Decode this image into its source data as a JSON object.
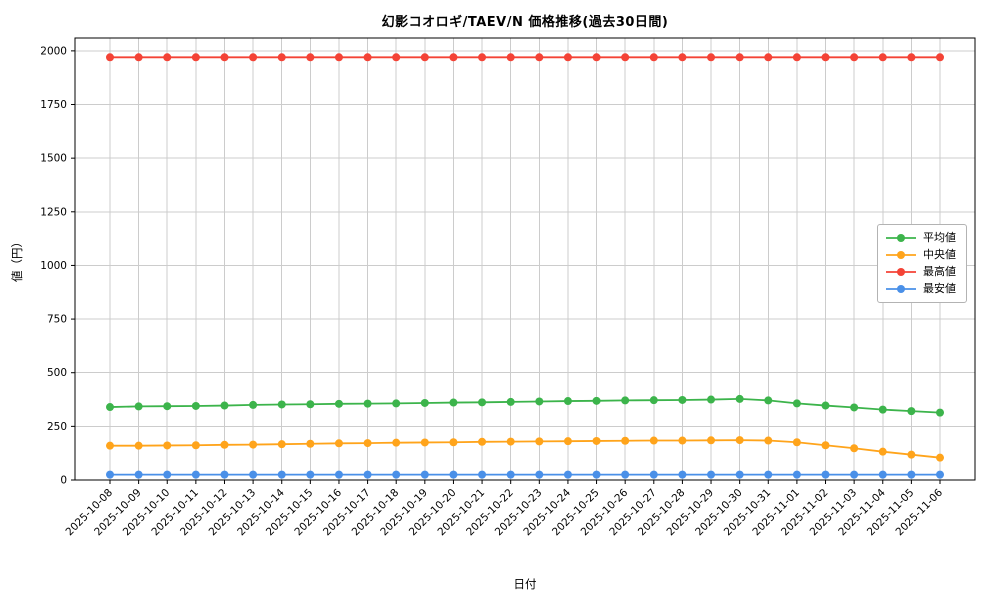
{
  "figure": {
    "background": "#ffffff",
    "grid_color": "#cccccc",
    "axis_color": "#000000"
  },
  "chart_data": {
    "type": "line",
    "title": "幻影コオロギ/TAEV/N 価格推移(過去30日間)",
    "xlabel": "日付",
    "ylabel": "値（円）",
    "grid": true,
    "legend_position": "center right",
    "ylim": [
      0,
      2060
    ],
    "yticks": [
      0,
      250,
      500,
      750,
      1000,
      1250,
      1500,
      1750,
      2000
    ],
    "x": [
      "2025-10-08",
      "2025-10-09",
      "2025-10-10",
      "2025-10-11",
      "2025-10-12",
      "2025-10-13",
      "2025-10-14",
      "2025-10-15",
      "2025-10-16",
      "2025-10-17",
      "2025-10-18",
      "2025-10-19",
      "2025-10-20",
      "2025-10-21",
      "2025-10-22",
      "2025-10-23",
      "2025-10-24",
      "2025-10-25",
      "2025-10-26",
      "2025-10-27",
      "2025-10-28",
      "2025-10-29",
      "2025-10-30",
      "2025-10-31",
      "2025-11-01",
      "2025-11-02",
      "2025-11-03",
      "2025-11-04",
      "2025-11-05",
      "2025-11-06"
    ],
    "series": [
      {
        "name": "平均値",
        "color": "#3cb44b",
        "values": [
          340,
          343,
          344,
          345,
          347,
          350,
          352,
          353,
          355,
          356,
          357,
          359,
          361,
          362,
          364,
          366,
          368,
          369,
          371,
          372,
          373,
          375,
          378,
          371,
          357,
          347,
          338,
          328,
          321,
          314
        ]
      },
      {
        "name": "中央値",
        "color": "#ffa41b",
        "values": [
          160,
          160,
          161,
          162,
          164,
          165,
          167,
          169,
          171,
          172,
          174,
          175,
          176,
          178,
          179,
          180,
          181,
          182,
          183,
          184,
          184,
          185,
          186,
          184,
          176,
          162,
          148,
          132,
          118,
          104
        ]
      },
      {
        "name": "最高値",
        "color": "#f44336",
        "values": [
          1970,
          1970,
          1970,
          1970,
          1970,
          1970,
          1970,
          1970,
          1970,
          1970,
          1970,
          1970,
          1970,
          1970,
          1970,
          1970,
          1970,
          1970,
          1970,
          1970,
          1970,
          1970,
          1970,
          1970,
          1970,
          1970,
          1970,
          1970,
          1970,
          1970
        ]
      },
      {
        "name": "最安値",
        "color": "#4a90e8",
        "values": [
          25,
          25,
          25,
          25,
          25,
          25,
          25,
          25,
          25,
          25,
          25,
          25,
          25,
          25,
          25,
          25,
          25,
          25,
          25,
          25,
          25,
          25,
          25,
          25,
          25,
          25,
          25,
          25,
          25,
          25
        ]
      }
    ]
  }
}
